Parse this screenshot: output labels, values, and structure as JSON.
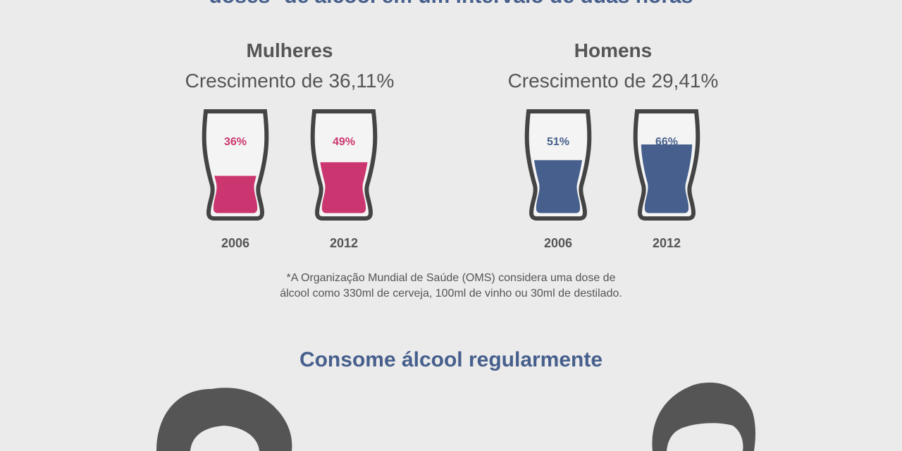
{
  "header": {
    "title": "doses* de álcool em um intervalo de duas horas"
  },
  "colors": {
    "women": "#cc3670",
    "men": "#465f8c",
    "text": "#555555",
    "glass_outline": "#444444",
    "bars": "#bdbdbd"
  },
  "chart_data": [
    {
      "type": "bar",
      "title": "Mulheres",
      "subtitle": "Crescimento de 36,11%",
      "categories": [
        "2006",
        "2012"
      ],
      "values": [
        36,
        49
      ],
      "value_labels": [
        "36%",
        "49%"
      ],
      "ylim": [
        0,
        100
      ],
      "color": "#cc3670"
    },
    {
      "type": "bar",
      "title": "Homens",
      "subtitle": "Crescimento de 29,41%",
      "categories": [
        "2006",
        "2012"
      ],
      "values": [
        51,
        66
      ],
      "value_labels": [
        "51%",
        "66%"
      ],
      "ylim": [
        0,
        100
      ],
      "color": "#465f8c"
    }
  ],
  "footnote": {
    "line1": "*A Organização Mundial de Saúde (OMS) considera uma dose de",
    "line2": "álcool como 330ml de cerveja, 100ml de vinho ou 30ml de destilado."
  },
  "section2": {
    "title": "Consome álcool regularmente"
  }
}
